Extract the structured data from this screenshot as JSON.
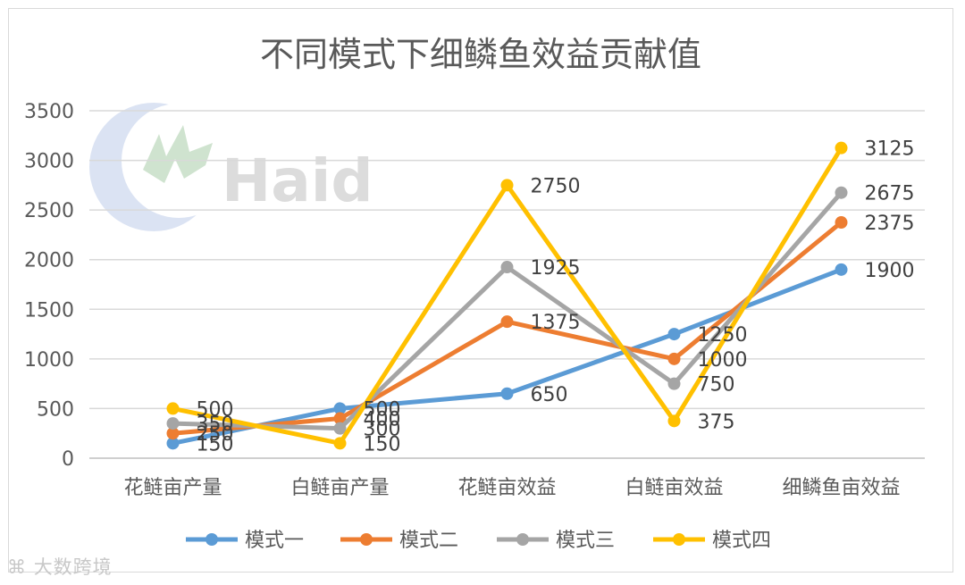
{
  "watermark": {
    "logo_text": "Haid",
    "corner_text": "大数跨境"
  },
  "chart_data": {
    "type": "line",
    "title": "不同模式下细鳞鱼效益贡献值",
    "categories": [
      "花鲢亩产量",
      "白鲢亩产量",
      "花鲢亩效益",
      "白鲢亩效益",
      "细鳞鱼亩效益"
    ],
    "ylim": [
      0,
      3500
    ],
    "yticks": [
      0,
      500,
      1000,
      1500,
      2000,
      2500,
      3000,
      3500
    ],
    "grid": true,
    "legend_position": "bottom",
    "series": [
      {
        "name": "模式一",
        "color": "#5b9bd5",
        "values": [
          150,
          500,
          650,
          1250,
          1900
        ]
      },
      {
        "name": "模式二",
        "color": "#ed7d31",
        "values": [
          250,
          400,
          1375,
          1000,
          2375
        ]
      },
      {
        "name": "模式三",
        "color": "#a5a5a5",
        "values": [
          350,
          300,
          1925,
          750,
          2675
        ]
      },
      {
        "name": "模式四",
        "color": "#ffc000",
        "values": [
          500,
          150,
          2750,
          375,
          3125
        ]
      }
    ]
  }
}
